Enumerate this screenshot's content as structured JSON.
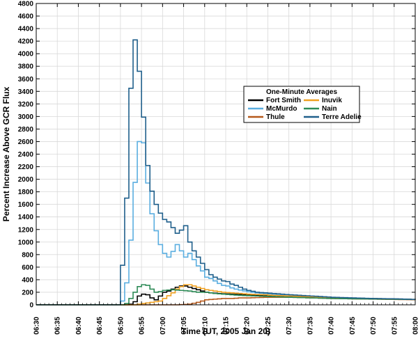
{
  "chart_data": {
    "type": "line",
    "step": true,
    "xlabel": "Time (UT, 2005 Jan 20)",
    "ylabel": "Percent Increase Above GCR Flux",
    "ylim": [
      0,
      4800
    ],
    "xlim": [
      "06:30",
      "08:00"
    ],
    "grid": true,
    "legend_title": "One-Minute Averages",
    "legend_placement": "upper-right",
    "yticks": [
      "0",
      "200",
      "400",
      "600",
      "800",
      "1000",
      "1200",
      "1400",
      "1600",
      "1800",
      "2000",
      "2200",
      "2400",
      "2600",
      "2800",
      "3000",
      "3200",
      "3400",
      "3600",
      "3800",
      "4000",
      "4200",
      "4400",
      "4600",
      "4800"
    ],
    "xticks": [
      "06:30",
      "06:35",
      "06:40",
      "06:45",
      "06:50",
      "06:55",
      "07:00",
      "07:05",
      "07:10",
      "07:15",
      "07:20",
      "07:25",
      "07:30",
      "07:35",
      "07:40",
      "07:45",
      "07:50",
      "07:55",
      "08:00"
    ],
    "series": [
      {
        "name": "Fort Smith",
        "color": "#000000",
        "x": [
          "06:30",
          "06:45",
          "06:50",
          "06:51",
          "06:52",
          "06:53",
          "06:54",
          "06:55",
          "06:56",
          "06:57",
          "06:58",
          "06:59",
          "07:00",
          "07:01",
          "07:02",
          "07:03",
          "07:04",
          "07:05",
          "07:06",
          "07:07",
          "07:08",
          "07:09",
          "07:10",
          "07:11",
          "07:12",
          "07:14",
          "07:16",
          "07:18",
          "07:20",
          "07:22",
          "07:24",
          "07:26",
          "07:28",
          "07:30",
          "07:35",
          "07:40",
          "07:45",
          "07:50",
          "07:55",
          "08:00"
        ],
        "values": [
          0,
          0,
          0,
          0,
          10,
          50,
          140,
          170,
          160,
          110,
          80,
          140,
          200,
          220,
          250,
          280,
          300,
          300,
          280,
          260,
          240,
          220,
          200,
          190,
          185,
          175,
          170,
          165,
          160,
          150,
          145,
          140,
          135,
          130,
          120,
          110,
          100,
          95,
          90,
          85
        ]
      },
      {
        "name": "McMurdo",
        "color": "#5aaee0",
        "x": [
          "06:30",
          "06:45",
          "06:49",
          "06:50",
          "06:51",
          "06:52",
          "06:53",
          "06:54",
          "06:55",
          "06:56",
          "06:57",
          "06:58",
          "06:59",
          "07:00",
          "07:01",
          "07:02",
          "07:03",
          "07:04",
          "07:05",
          "07:06",
          "07:07",
          "07:08",
          "07:09",
          "07:10",
          "07:11",
          "07:12",
          "07:13",
          "07:14",
          "07:15",
          "07:16",
          "07:17",
          "07:18",
          "07:20",
          "07:22",
          "07:24",
          "07:26",
          "07:28",
          "07:30",
          "07:35",
          "07:40",
          "07:45",
          "07:50",
          "07:55",
          "08:00"
        ],
        "values": [
          0,
          0,
          0,
          60,
          350,
          1030,
          1950,
          2600,
          2580,
          1940,
          1450,
          1180,
          960,
          820,
          760,
          850,
          960,
          860,
          760,
          820,
          720,
          620,
          540,
          440,
          420,
          380,
          340,
          310,
          300,
          270,
          250,
          235,
          210,
          190,
          180,
          170,
          160,
          150,
          130,
          115,
          105,
          100,
          90,
          85
        ]
      },
      {
        "name": "Thule",
        "color": "#b5581a",
        "x": [
          "06:30",
          "06:45",
          "06:55",
          "07:00",
          "07:03",
          "07:06",
          "07:08",
          "07:10",
          "07:12",
          "07:14",
          "07:16",
          "07:18",
          "07:20",
          "07:22",
          "07:24",
          "07:26",
          "07:28",
          "07:30",
          "07:35",
          "07:40",
          "07:45",
          "07:50",
          "07:55",
          "08:00"
        ],
        "values": [
          0,
          0,
          0,
          0,
          0,
          10,
          40,
          80,
          90,
          100,
          100,
          110,
          110,
          115,
          120,
          120,
          120,
          120,
          110,
          100,
          95,
          90,
          85,
          80
        ]
      },
      {
        "name": "Inuvik",
        "color": "#f0a020",
        "x": [
          "06:30",
          "06:45",
          "06:53",
          "06:55",
          "06:57",
          "06:59",
          "07:00",
          "07:02",
          "07:03",
          "07:04",
          "07:05",
          "07:06",
          "07:07",
          "07:08",
          "07:09",
          "07:10",
          "07:12",
          "07:14",
          "07:16",
          "07:18",
          "07:20",
          "07:22",
          "07:24",
          "07:26",
          "07:28",
          "07:30",
          "07:35",
          "07:40",
          "07:45",
          "07:50",
          "07:55",
          "08:00"
        ],
        "values": [
          0,
          0,
          0,
          20,
          40,
          60,
          100,
          190,
          250,
          290,
          320,
          320,
          300,
          280,
          260,
          240,
          220,
          200,
          190,
          180,
          170,
          165,
          160,
          150,
          145,
          140,
          130,
          115,
          105,
          100,
          92,
          85
        ]
      },
      {
        "name": "Nain",
        "color": "#2e8b57",
        "x": [
          "06:30",
          "06:45",
          "06:50",
          "06:51",
          "06:52",
          "06:53",
          "06:54",
          "06:55",
          "06:56",
          "06:57",
          "06:58",
          "06:59",
          "07:00",
          "07:02",
          "07:04",
          "07:06",
          "07:08",
          "07:10",
          "07:12",
          "07:14",
          "07:16",
          "07:18",
          "07:20",
          "07:22",
          "07:24",
          "07:26",
          "07:28",
          "07:30",
          "07:35",
          "07:40",
          "07:45",
          "07:50",
          "07:55",
          "08:00"
        ],
        "values": [
          0,
          0,
          0,
          20,
          100,
          200,
          290,
          320,
          310,
          250,
          200,
          210,
          230,
          240,
          230,
          220,
          200,
          200,
          180,
          170,
          160,
          150,
          145,
          140,
          135,
          130,
          125,
          120,
          110,
          100,
          95,
          92,
          88,
          85
        ]
      },
      {
        "name": "Terre Adelie",
        "color": "#1f5f8b",
        "x": [
          "06:30",
          "06:45",
          "06:49",
          "06:50",
          "06:51",
          "06:52",
          "06:53",
          "06:54",
          "06:55",
          "06:56",
          "06:57",
          "06:58",
          "06:59",
          "07:00",
          "07:01",
          "07:02",
          "07:03",
          "07:04",
          "07:05",
          "07:06",
          "07:07",
          "07:08",
          "07:09",
          "07:10",
          "07:11",
          "07:12",
          "07:13",
          "07:14",
          "07:15",
          "07:16",
          "07:17",
          "07:18",
          "07:19",
          "07:20",
          "07:22",
          "07:24",
          "07:26",
          "07:28",
          "07:30",
          "07:35",
          "07:40",
          "07:45",
          "07:50",
          "07:55",
          "08:00"
        ],
        "values": [
          0,
          0,
          0,
          630,
          1700,
          3450,
          4220,
          3720,
          2990,
          2220,
          1810,
          1600,
          1460,
          1360,
          1320,
          1230,
          1140,
          1190,
          1260,
          1000,
          860,
          760,
          660,
          560,
          480,
          440,
          410,
          380,
          370,
          330,
          310,
          280,
          250,
          230,
          200,
          190,
          180,
          170,
          160,
          140,
          120,
          110,
          100,
          95,
          85
        ]
      }
    ]
  }
}
